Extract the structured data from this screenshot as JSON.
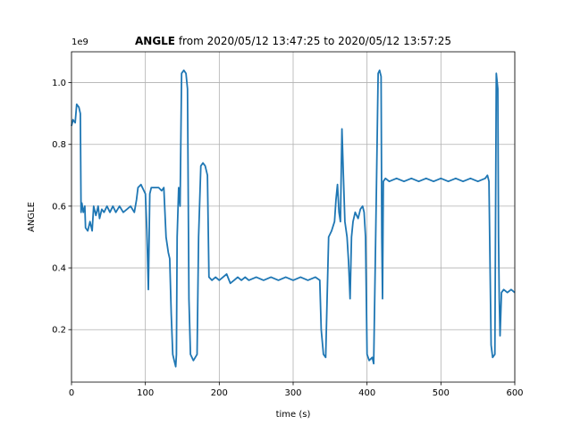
{
  "chart_data": {
    "type": "line",
    "title_bold": "ANGLE",
    "title_rest": " from 2020/05/12 13:47:25 to 2020/05/12 13:57:25",
    "xlabel": "time (s)",
    "ylabel": "ANGLE",
    "offset_label": "1e9",
    "xlim": [
      0,
      600
    ],
    "ylim": [
      0.03,
      1.1
    ],
    "x_ticks": [
      0,
      100,
      200,
      300,
      400,
      500,
      600
    ],
    "x_tick_labels": [
      "0",
      "100",
      "200",
      "300",
      "400",
      "500",
      "600"
    ],
    "y_ticks": [
      0.2,
      0.4,
      0.6,
      0.8,
      1.0
    ],
    "y_tick_labels": [
      "0.2",
      "0.4",
      "0.6",
      "0.8",
      "1.0"
    ],
    "grid": true,
    "line_color": "#1f77b4",
    "series": [
      {
        "name": "",
        "points": [
          [
            0,
            0.86
          ],
          [
            2,
            0.88
          ],
          [
            5,
            0.87
          ],
          [
            7,
            0.93
          ],
          [
            10,
            0.92
          ],
          [
            12,
            0.9
          ],
          [
            13,
            0.58
          ],
          [
            14,
            0.61
          ],
          [
            16,
            0.58
          ],
          [
            18,
            0.6
          ],
          [
            19,
            0.53
          ],
          [
            22,
            0.52
          ],
          [
            25,
            0.55
          ],
          [
            28,
            0.52
          ],
          [
            30,
            0.6
          ],
          [
            33,
            0.57
          ],
          [
            36,
            0.6
          ],
          [
            38,
            0.56
          ],
          [
            41,
            0.59
          ],
          [
            44,
            0.58
          ],
          [
            48,
            0.6
          ],
          [
            52,
            0.58
          ],
          [
            56,
            0.6
          ],
          [
            60,
            0.58
          ],
          [
            65,
            0.6
          ],
          [
            70,
            0.58
          ],
          [
            75,
            0.59
          ],
          [
            80,
            0.6
          ],
          [
            85,
            0.58
          ],
          [
            88,
            0.62
          ],
          [
            90,
            0.66
          ],
          [
            94,
            0.67
          ],
          [
            98,
            0.65
          ],
          [
            100,
            0.64
          ],
          [
            102,
            0.52
          ],
          [
            104,
            0.33
          ],
          [
            106,
            0.64
          ],
          [
            108,
            0.66
          ],
          [
            112,
            0.66
          ],
          [
            118,
            0.66
          ],
          [
            122,
            0.65
          ],
          [
            125,
            0.66
          ],
          [
            128,
            0.5
          ],
          [
            131,
            0.45
          ],
          [
            133,
            0.43
          ],
          [
            135,
            0.25
          ],
          [
            137,
            0.12
          ],
          [
            139,
            0.1
          ],
          [
            141,
            0.08
          ],
          [
            142,
            0.12
          ],
          [
            143,
            0.5
          ],
          [
            145,
            0.66
          ],
          [
            147,
            0.6
          ],
          [
            149,
            1.03
          ],
          [
            152,
            1.04
          ],
          [
            155,
            1.03
          ],
          [
            157,
            0.98
          ],
          [
            159,
            0.3
          ],
          [
            161,
            0.12
          ],
          [
            165,
            0.1
          ],
          [
            170,
            0.12
          ],
          [
            172,
            0.5
          ],
          [
            175,
            0.73
          ],
          [
            178,
            0.74
          ],
          [
            181,
            0.73
          ],
          [
            184,
            0.7
          ],
          [
            186,
            0.37
          ],
          [
            190,
            0.36
          ],
          [
            195,
            0.37
          ],
          [
            200,
            0.36
          ],
          [
            205,
            0.37
          ],
          [
            210,
            0.38
          ],
          [
            215,
            0.35
          ],
          [
            220,
            0.36
          ],
          [
            225,
            0.37
          ],
          [
            230,
            0.36
          ],
          [
            235,
            0.37
          ],
          [
            240,
            0.36
          ],
          [
            250,
            0.37
          ],
          [
            260,
            0.36
          ],
          [
            270,
            0.37
          ],
          [
            280,
            0.36
          ],
          [
            290,
            0.37
          ],
          [
            300,
            0.36
          ],
          [
            310,
            0.37
          ],
          [
            320,
            0.36
          ],
          [
            330,
            0.37
          ],
          [
            336,
            0.36
          ],
          [
            338,
            0.2
          ],
          [
            341,
            0.12
          ],
          [
            344,
            0.11
          ],
          [
            346,
            0.3
          ],
          [
            348,
            0.5
          ],
          [
            352,
            0.52
          ],
          [
            356,
            0.55
          ],
          [
            358,
            0.62
          ],
          [
            360,
            0.67
          ],
          [
            362,
            0.58
          ],
          [
            364,
            0.55
          ],
          [
            366,
            0.85
          ],
          [
            368,
            0.7
          ],
          [
            370,
            0.55
          ],
          [
            373,
            0.5
          ],
          [
            375,
            0.42
          ],
          [
            377,
            0.3
          ],
          [
            379,
            0.5
          ],
          [
            381,
            0.55
          ],
          [
            384,
            0.58
          ],
          [
            388,
            0.56
          ],
          [
            391,
            0.59
          ],
          [
            394,
            0.6
          ],
          [
            396,
            0.58
          ],
          [
            398,
            0.5
          ],
          [
            400,
            0.12
          ],
          [
            403,
            0.1
          ],
          [
            407,
            0.11
          ],
          [
            409,
            0.09
          ],
          [
            411,
            0.4
          ],
          [
            413,
            0.7
          ],
          [
            415,
            1.03
          ],
          [
            417,
            1.04
          ],
          [
            419,
            1.02
          ],
          [
            420,
            0.5
          ],
          [
            421,
            0.3
          ],
          [
            422,
            0.68
          ],
          [
            425,
            0.69
          ],
          [
            430,
            0.68
          ],
          [
            440,
            0.69
          ],
          [
            450,
            0.68
          ],
          [
            460,
            0.69
          ],
          [
            470,
            0.68
          ],
          [
            480,
            0.69
          ],
          [
            490,
            0.68
          ],
          [
            500,
            0.69
          ],
          [
            510,
            0.68
          ],
          [
            520,
            0.69
          ],
          [
            530,
            0.68
          ],
          [
            540,
            0.69
          ],
          [
            550,
            0.68
          ],
          [
            560,
            0.69
          ],
          [
            563,
            0.7
          ],
          [
            565,
            0.68
          ],
          [
            566,
            0.5
          ],
          [
            568,
            0.15
          ],
          [
            570,
            0.11
          ],
          [
            573,
            0.12
          ],
          [
            575,
            1.03
          ],
          [
            577,
            0.98
          ],
          [
            578,
            0.5
          ],
          [
            579,
            0.3
          ],
          [
            580,
            0.18
          ],
          [
            582,
            0.32
          ],
          [
            585,
            0.33
          ],
          [
            590,
            0.32
          ],
          [
            595,
            0.33
          ],
          [
            600,
            0.32
          ]
        ]
      }
    ]
  }
}
